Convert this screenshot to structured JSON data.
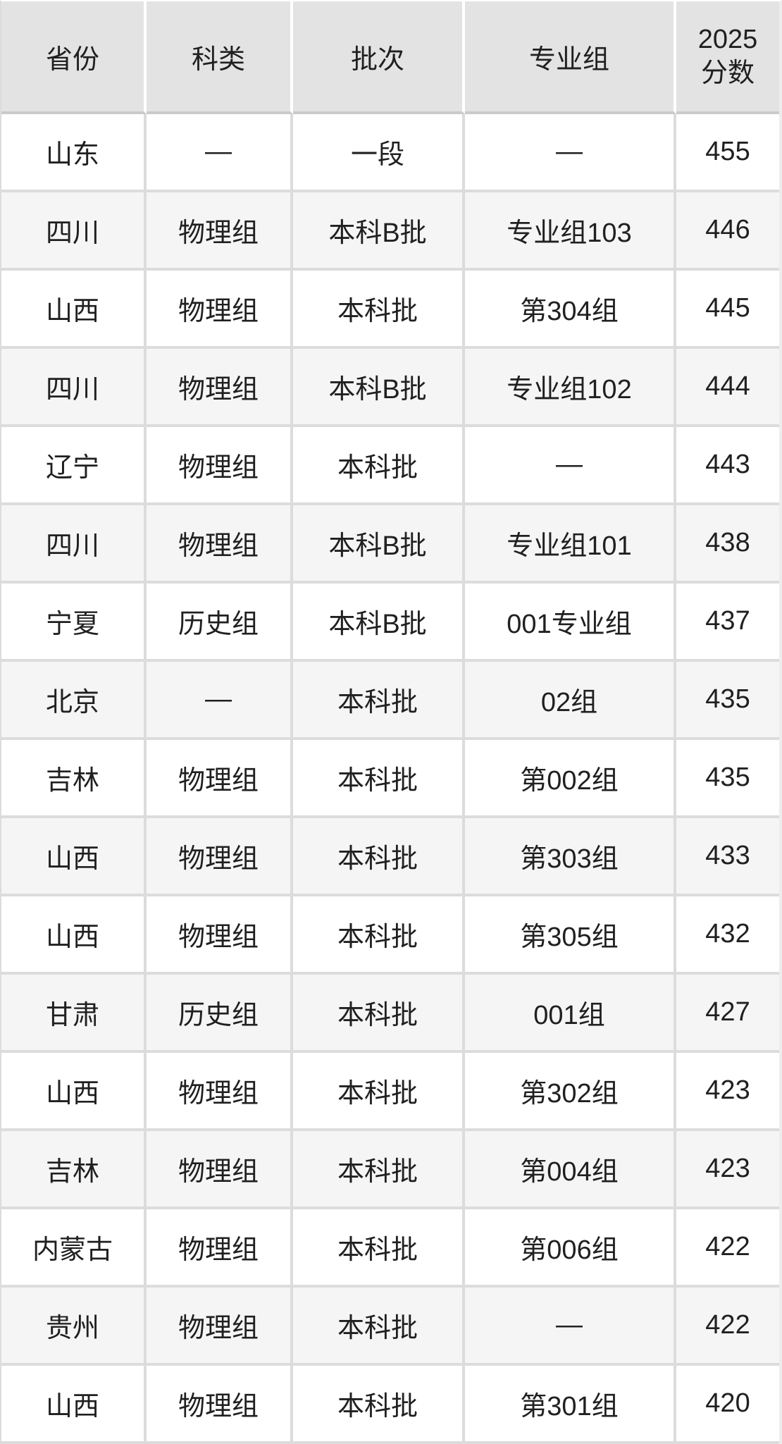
{
  "chart_data": {
    "type": "table",
    "columns": [
      {
        "key": "province",
        "label": "省份"
      },
      {
        "key": "category",
        "label": "科类"
      },
      {
        "key": "batch",
        "label": "批次"
      },
      {
        "key": "group",
        "label": "专业组"
      },
      {
        "key": "score",
        "label": "2025分数",
        "label_line1": "2025",
        "label_line2": "分数"
      }
    ],
    "rows": [
      [
        "山东",
        "—",
        "一段",
        "—",
        "455"
      ],
      [
        "四川",
        "物理组",
        "本科B批",
        "专业组103",
        "446"
      ],
      [
        "山西",
        "物理组",
        "本科批",
        "第304组",
        "445"
      ],
      [
        "四川",
        "物理组",
        "本科B批",
        "专业组102",
        "444"
      ],
      [
        "辽宁",
        "物理组",
        "本科批",
        "—",
        "443"
      ],
      [
        "四川",
        "物理组",
        "本科B批",
        "专业组101",
        "438"
      ],
      [
        "宁夏",
        "历史组",
        "本科B批",
        "001专业组",
        "437"
      ],
      [
        "北京",
        "—",
        "本科批",
        "02组",
        "435"
      ],
      [
        "吉林",
        "物理组",
        "本科批",
        "第002组",
        "435"
      ],
      [
        "山西",
        "物理组",
        "本科批",
        "第303组",
        "433"
      ],
      [
        "山西",
        "物理组",
        "本科批",
        "第305组",
        "432"
      ],
      [
        "甘肃",
        "历史组",
        "本科批",
        "001组",
        "427"
      ],
      [
        "山西",
        "物理组",
        "本科批",
        "第302组",
        "423"
      ],
      [
        "吉林",
        "物理组",
        "本科批",
        "第004组",
        "423"
      ],
      [
        "内蒙古",
        "物理组",
        "本科批",
        "第006组",
        "422"
      ],
      [
        "贵州",
        "物理组",
        "本科批",
        "—",
        "422"
      ],
      [
        "山西",
        "物理组",
        "本科批",
        "第301组",
        "420"
      ]
    ],
    "colors": {
      "header_bg": "#e3e3e4",
      "row_bg": "#ffffff",
      "row_alt_bg": "#f5f5f6",
      "grid_line": "#dcdcdd",
      "header_divider": "#c9caca",
      "text": "#202020"
    }
  }
}
